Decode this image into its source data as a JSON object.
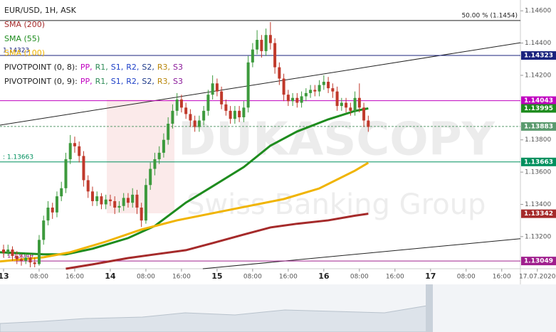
{
  "chart_data": {
    "type": "candlestick",
    "title": "EUR/USD, 1H, ASK",
    "up_color": "#3d9a3d",
    "down_color": "#c0392b",
    "xlim": [
      -0.8,
      116.2
    ],
    "ylim": [
      1.13001,
      1.14667
    ],
    "yticks": [
      {
        "value": 1.146,
        "label": "1.14600"
      },
      {
        "value": 1.144,
        "label": "1.14400"
      },
      {
        "value": 1.142,
        "label": "1.14200"
      },
      {
        "value": 1.138,
        "label": "1.13800"
      },
      {
        "value": 1.136,
        "label": "1.13600"
      },
      {
        "value": 1.134,
        "label": "1.13400"
      },
      {
        "value": 1.132,
        "label": "1.13200"
      }
    ],
    "xticks": [
      {
        "value": 0,
        "label": "13"
      },
      {
        "value": 8,
        "label": "08:00"
      },
      {
        "value": 16,
        "label": "16:00"
      },
      {
        "value": 24,
        "label": "14"
      },
      {
        "value": 32,
        "label": "08:00"
      },
      {
        "value": 40,
        "label": "16:00"
      },
      {
        "value": 48,
        "label": "15"
      },
      {
        "value": 56,
        "label": "08:00"
      },
      {
        "value": 64,
        "label": "16:00"
      },
      {
        "value": 72,
        "label": "16"
      },
      {
        "value": 80,
        "label": "08:00"
      },
      {
        "value": 88,
        "label": "16:00"
      },
      {
        "value": 96,
        "label": "17"
      },
      {
        "value": 104,
        "label": "08:00"
      },
      {
        "value": 112,
        "label": "16:00"
      },
      {
        "value": 120,
        "label": "17.07.2020"
      }
    ],
    "x": [
      0,
      1,
      2,
      3,
      4,
      5,
      6,
      7,
      8,
      9,
      10,
      11,
      12,
      13,
      14,
      15,
      16,
      17,
      18,
      19,
      20,
      21,
      22,
      23,
      24,
      25,
      26,
      27,
      28,
      29,
      30,
      31,
      32,
      33,
      34,
      35,
      36,
      37,
      38,
      39,
      40,
      41,
      42,
      43,
      44,
      45,
      46,
      47,
      48,
      49,
      50,
      51,
      52,
      53,
      54,
      55,
      56,
      57,
      58,
      59,
      60,
      61,
      62,
      63,
      64,
      65,
      66,
      67,
      68,
      69,
      70,
      71,
      72,
      73,
      74,
      75,
      76,
      77,
      78,
      79,
      80,
      81,
      82
    ],
    "candles": [
      [
        1.1312,
        1.1315,
        1.1307,
        1.131
      ],
      [
        1.131,
        1.1315,
        1.1308,
        1.1312
      ],
      [
        1.1312,
        1.1314,
        1.1305,
        1.1308
      ],
      [
        1.1308,
        1.1311,
        1.1303,
        1.1306
      ],
      [
        1.1306,
        1.1309,
        1.1302,
        1.1305
      ],
      [
        1.1305,
        1.131,
        1.1303,
        1.1307
      ],
      [
        1.1307,
        1.1309,
        1.1301,
        1.1304
      ],
      [
        1.1304,
        1.1307,
        1.1301,
        1.1303
      ],
      [
        1.1303,
        1.1321,
        1.1302,
        1.1318
      ],
      [
        1.1318,
        1.1333,
        1.1315,
        1.133
      ],
      [
        1.133,
        1.1342,
        1.1327,
        1.1338
      ],
      [
        1.1338,
        1.1341,
        1.1331,
        1.1335
      ],
      [
        1.1335,
        1.1348,
        1.1332,
        1.1345
      ],
      [
        1.1345,
        1.1354,
        1.1342,
        1.135
      ],
      [
        1.135,
        1.1372,
        1.1347,
        1.1368
      ],
      [
        1.1368,
        1.1383,
        1.1365,
        1.1378
      ],
      [
        1.1378,
        1.1382,
        1.1372,
        1.1376
      ],
      [
        1.1376,
        1.1379,
        1.1366,
        1.137
      ],
      [
        1.137,
        1.1373,
        1.1351,
        1.1355
      ],
      [
        1.1355,
        1.1358,
        1.1344,
        1.1348
      ],
      [
        1.1348,
        1.1351,
        1.1339,
        1.1342
      ],
      [
        1.1342,
        1.1348,
        1.1339,
        1.1345
      ],
      [
        1.1345,
        1.1347,
        1.1337,
        1.134
      ],
      [
        1.134,
        1.1346,
        1.1337,
        1.1343
      ],
      [
        1.1343,
        1.1346,
        1.1339,
        1.1342
      ],
      [
        1.1342,
        1.1345,
        1.1334,
        1.1338
      ],
      [
        1.1338,
        1.1342,
        1.1335,
        1.1339
      ],
      [
        1.1339,
        1.1347,
        1.1336,
        1.1344
      ],
      [
        1.1344,
        1.1347,
        1.1338,
        1.1341
      ],
      [
        1.1341,
        1.135,
        1.1338,
        1.1346
      ],
      [
        1.1346,
        1.1349,
        1.1334,
        1.1338
      ],
      [
        1.1338,
        1.1341,
        1.1326,
        1.133
      ],
      [
        1.133,
        1.1356,
        1.1328,
        1.1352
      ],
      [
        1.1352,
        1.1366,
        1.1349,
        1.1362
      ],
      [
        1.1362,
        1.1372,
        1.1358,
        1.1368
      ],
      [
        1.1368,
        1.1376,
        1.1365,
        1.1372
      ],
      [
        1.1372,
        1.1384,
        1.1369,
        1.138
      ],
      [
        1.138,
        1.1394,
        1.1377,
        1.139
      ],
      [
        1.139,
        1.1402,
        1.1387,
        1.1398
      ],
      [
        1.1398,
        1.1409,
        1.1395,
        1.1405
      ],
      [
        1.1405,
        1.1408,
        1.1397,
        1.14
      ],
      [
        1.14,
        1.1403,
        1.1393,
        1.1396
      ],
      [
        1.1396,
        1.1399,
        1.1388,
        1.1392
      ],
      [
        1.1392,
        1.1395,
        1.1385,
        1.1388
      ],
      [
        1.1388,
        1.1395,
        1.1385,
        1.1392
      ],
      [
        1.1392,
        1.1401,
        1.1389,
        1.1398
      ],
      [
        1.1398,
        1.1411,
        1.1395,
        1.1408
      ],
      [
        1.1408,
        1.142,
        1.1405,
        1.1415
      ],
      [
        1.1415,
        1.1418,
        1.1407,
        1.141
      ],
      [
        1.141,
        1.1413,
        1.1399,
        1.1402
      ],
      [
        1.1402,
        1.1405,
        1.1395,
        1.1398
      ],
      [
        1.1398,
        1.1401,
        1.139,
        1.1393
      ],
      [
        1.1393,
        1.1401,
        1.139,
        1.1398
      ],
      [
        1.1398,
        1.1401,
        1.1391,
        1.1394
      ],
      [
        1.1394,
        1.1404,
        1.1391,
        1.14
      ],
      [
        1.14,
        1.1432,
        1.1397,
        1.1428
      ],
      [
        1.1428,
        1.144,
        1.1425,
        1.1436
      ],
      [
        1.1436,
        1.1448,
        1.1433,
        1.1442
      ],
      [
        1.1442,
        1.1445,
        1.1431,
        1.1435
      ],
      [
        1.1435,
        1.1449,
        1.1432,
        1.1445
      ],
      [
        1.1445,
        1.1453,
        1.1436,
        1.144
      ],
      [
        1.144,
        1.1443,
        1.1421,
        1.1425
      ],
      [
        1.1425,
        1.1428,
        1.1414,
        1.1418
      ],
      [
        1.1418,
        1.1421,
        1.1404,
        1.1408
      ],
      [
        1.1408,
        1.1411,
        1.1401,
        1.1404
      ],
      [
        1.1404,
        1.1409,
        1.1401,
        1.1406
      ],
      [
        1.1406,
        1.1409,
        1.14,
        1.1403
      ],
      [
        1.1403,
        1.141,
        1.14,
        1.1407
      ],
      [
        1.1407,
        1.1412,
        1.1404,
        1.1409
      ],
      [
        1.1409,
        1.1414,
        1.1406,
        1.1411
      ],
      [
        1.1411,
        1.1414,
        1.1407,
        1.141
      ],
      [
        1.141,
        1.1417,
        1.1407,
        1.1414
      ],
      [
        1.1414,
        1.142,
        1.1411,
        1.1416
      ],
      [
        1.1416,
        1.1419,
        1.1409,
        1.1412
      ],
      [
        1.1412,
        1.1415,
        1.1406,
        1.141
      ],
      [
        1.141,
        1.1413,
        1.1398,
        1.1401
      ],
      [
        1.1401,
        1.1406,
        1.1398,
        1.1403
      ],
      [
        1.1403,
        1.1406,
        1.1397,
        1.14
      ],
      [
        1.14,
        1.1403,
        1.1395,
        1.1398
      ],
      [
        1.1398,
        1.141,
        1.1395,
        1.1406
      ],
      [
        1.1406,
        1.1415,
        1.1397,
        1.14
      ],
      [
        1.14,
        1.1403,
        1.1388,
        1.1392
      ],
      [
        1.1392,
        1.1395,
        1.1385,
        1.1388
      ]
    ],
    "indicators": [
      {
        "name": "SMA (200)",
        "color": "#a52a2a",
        "x": [
          14,
          20,
          28,
          34,
          41,
          47,
          54,
          60,
          66,
          73,
          79,
          82
        ],
        "values": [
          1.13001,
          1.13028,
          1.13067,
          1.1309,
          1.13116,
          1.1316,
          1.13213,
          1.13257,
          1.1328,
          1.13301,
          1.1333,
          1.13342
        ],
        "last_box": true
      },
      {
        "name": "SMA (55)",
        "color": "#1e8c1e",
        "x": [
          -0.8,
          9,
          14,
          20,
          28,
          34,
          41,
          47,
          54,
          60,
          66,
          73,
          79,
          82
        ],
        "values": [
          1.13103,
          1.1309,
          1.1309,
          1.13125,
          1.13191,
          1.13266,
          1.13411,
          1.13512,
          1.13631,
          1.13764,
          1.13852,
          1.13927,
          1.13979,
          1.13995
        ],
        "last_box": true
      },
      {
        "name": "SMA (100)",
        "color": "#f0b400",
        "x": [
          -0.8,
          9,
          15,
          23,
          31,
          39,
          47,
          55,
          63,
          71,
          79,
          82
        ],
        "values": [
          1.13046,
          1.13072,
          1.13103,
          1.13169,
          1.13244,
          1.13301,
          1.13345,
          1.13389,
          1.13433,
          1.13499,
          1.13609,
          1.13658
        ],
        "last_box": false
      }
    ],
    "levels": [
      {
        "value": 1.14323,
        "color": "#1a237e",
        "left_label": "1.14323"
      },
      {
        "value": 1.14043,
        "color": "#c000c0"
      },
      {
        "value": 1.13663,
        "color": "#00905e",
        "left_label": ": 1.13663"
      },
      {
        "value": 1.13049,
        "color": "#a0208e",
        "left_label": ": 1.13049"
      }
    ],
    "last_price": {
      "value": 1.13883,
      "color": "#5a9a6e"
    },
    "fib_level": {
      "value": 1.1454,
      "label": "50.00 % (1.1454)"
    },
    "trendlines": [
      {
        "x": [
          -0.8,
          116.2
        ],
        "values": [
          1.13891,
          1.14402
        ]
      },
      {
        "x": [
          44.8,
          116.2
        ],
        "values": [
          1.13001,
          1.13187
        ]
      }
    ],
    "pivot_legends": [
      {
        "prefix": "PIVOTPOINT (0, 8):",
        "items": [
          "PP,",
          "R1,",
          "S1,",
          "R2,",
          "S2,",
          "R3,",
          "S3"
        ]
      },
      {
        "prefix": "PIVOTPOINT (0, 9):",
        "items": [
          "PP,",
          "R1,",
          "S1,",
          "R2,",
          "S2,",
          "R3,",
          "S3"
        ]
      }
    ],
    "pivot_colors": [
      "#c000c0",
      "#2e8b57",
      "#1e40c8",
      "#1e40c8",
      "#1e3a8a",
      "#b8860b",
      "#8b1a9a"
    ],
    "watermark": [
      "DUKASCOPY",
      "Swiss Banking Group"
    ]
  }
}
